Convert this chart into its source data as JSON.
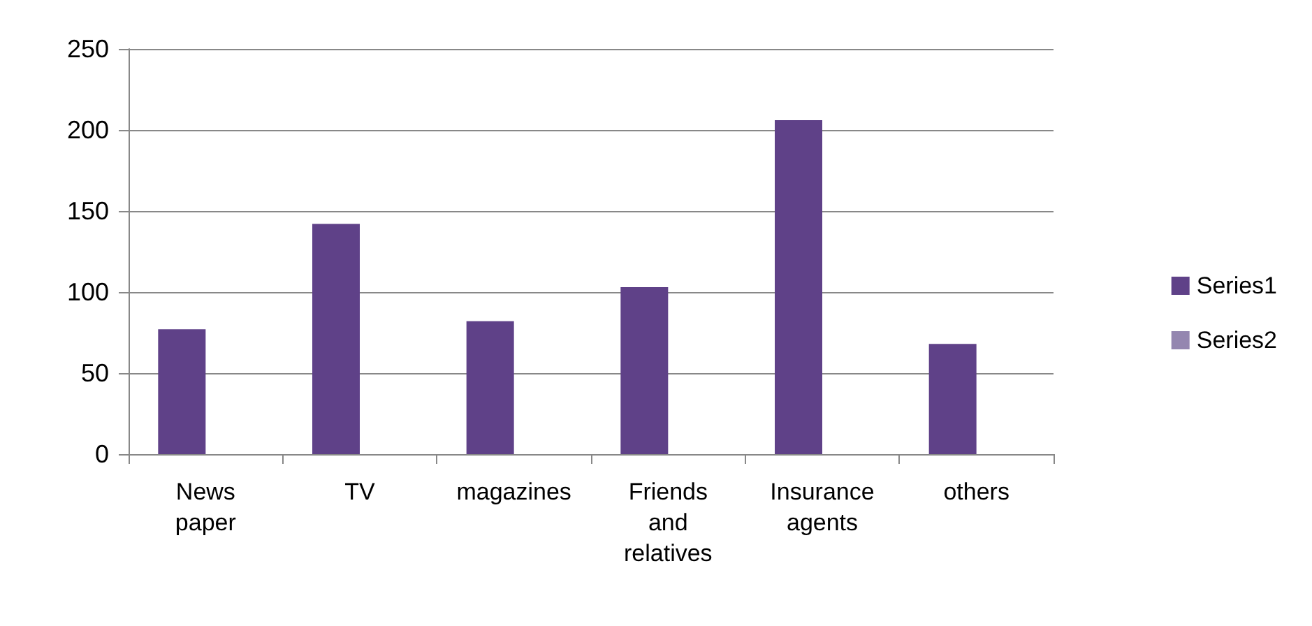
{
  "chart_data": {
    "type": "bar",
    "categories": [
      "News paper",
      "TV",
      "magazines",
      "Friends and relatives",
      "Insurance agents",
      "others"
    ],
    "series": [
      {
        "name": "Series1",
        "color": "#5f4188",
        "values": [
          77,
          142,
          82,
          103,
          206,
          68
        ]
      },
      {
        "name": "Series2",
        "color": "#9486b0",
        "values": [
          null,
          null,
          null,
          null,
          null,
          null
        ]
      }
    ],
    "ylim": [
      0,
      250
    ],
    "yticks": [
      0,
      50,
      100,
      150,
      200,
      250
    ],
    "grid": "y",
    "legend": "right"
  }
}
